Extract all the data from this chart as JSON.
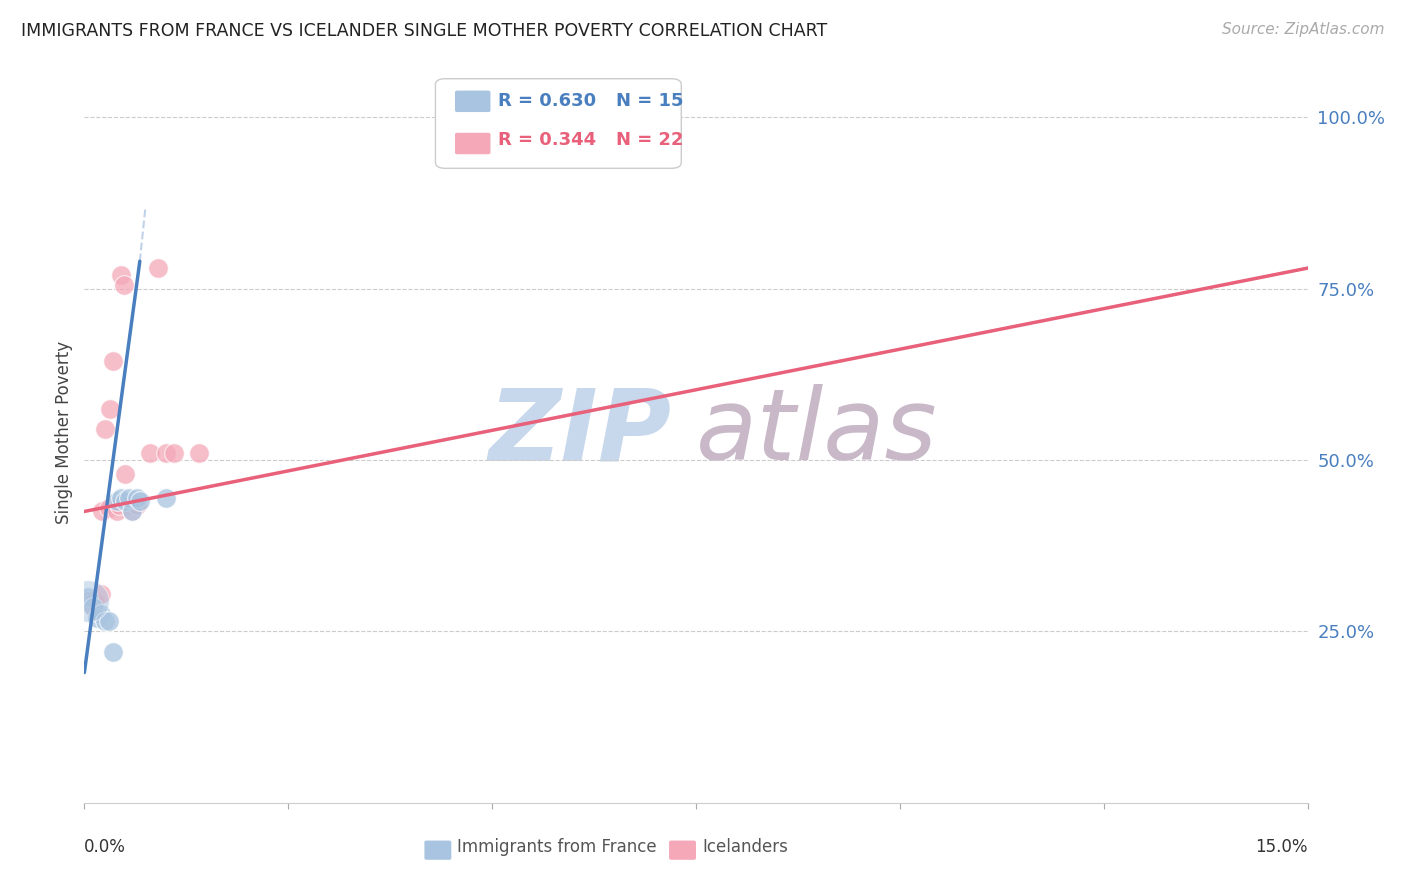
{
  "title": "IMMIGRANTS FROM FRANCE VS ICELANDER SINGLE MOTHER POVERTY CORRELATION CHART",
  "source": "Source: ZipAtlas.com",
  "ylabel": "Single Mother Poverty",
  "ylabel_right_ticks": [
    "100.0%",
    "75.0%",
    "50.0%",
    "25.0%"
  ],
  "ylabel_right_vals": [
    1.0,
    0.75,
    0.5,
    0.25
  ],
  "legend_blue_R": "R = 0.630",
  "legend_blue_N": "N = 15",
  "legend_pink_R": "R = 0.344",
  "legend_pink_N": "N = 22",
  "blue_color": "#A8C4E0",
  "pink_color": "#F4A8B8",
  "blue_line_color": "#4A7FBF",
  "pink_line_color": "#E8607A",
  "blue_scatter": [
    [
      0.05,
      0.3
    ],
    [
      0.1,
      0.285
    ],
    [
      0.15,
      0.27
    ],
    [
      0.2,
      0.275
    ],
    [
      0.25,
      0.265
    ],
    [
      0.3,
      0.265
    ],
    [
      0.35,
      0.22
    ],
    [
      0.4,
      0.44
    ],
    [
      0.45,
      0.445
    ],
    [
      0.5,
      0.44
    ],
    [
      0.55,
      0.445
    ],
    [
      0.58,
      0.425
    ],
    [
      0.65,
      0.445
    ],
    [
      0.68,
      0.44
    ],
    [
      1.0,
      0.445
    ]
  ],
  "pink_scatter": [
    [
      0.05,
      0.295
    ],
    [
      0.1,
      0.285
    ],
    [
      0.12,
      0.295
    ],
    [
      0.2,
      0.305
    ],
    [
      0.22,
      0.425
    ],
    [
      0.25,
      0.545
    ],
    [
      0.3,
      0.43
    ],
    [
      0.32,
      0.575
    ],
    [
      0.35,
      0.645
    ],
    [
      0.4,
      0.425
    ],
    [
      0.42,
      0.435
    ],
    [
      0.45,
      0.77
    ],
    [
      0.48,
      0.755
    ],
    [
      0.5,
      0.48
    ],
    [
      0.55,
      0.435
    ],
    [
      0.58,
      0.425
    ],
    [
      0.65,
      0.435
    ],
    [
      0.8,
      0.51
    ],
    [
      0.9,
      0.78
    ],
    [
      1.0,
      0.51
    ],
    [
      1.1,
      0.51
    ],
    [
      1.4,
      0.51
    ]
  ],
  "blue_large_bubble": [
    0.05,
    0.295
  ],
  "xlim_min": 0.0,
  "xlim_max": 15.0,
  "ylim_min": 0.0,
  "ylim_max": 1.08,
  "grid_color": "#CCCCCC",
  "background_color": "#FFFFFF",
  "watermark_zip": "ZIP",
  "watermark_atlas": "atlas",
  "watermark_color": "#C8D8EC",
  "watermark_atlas_color": "#C8B8C8"
}
